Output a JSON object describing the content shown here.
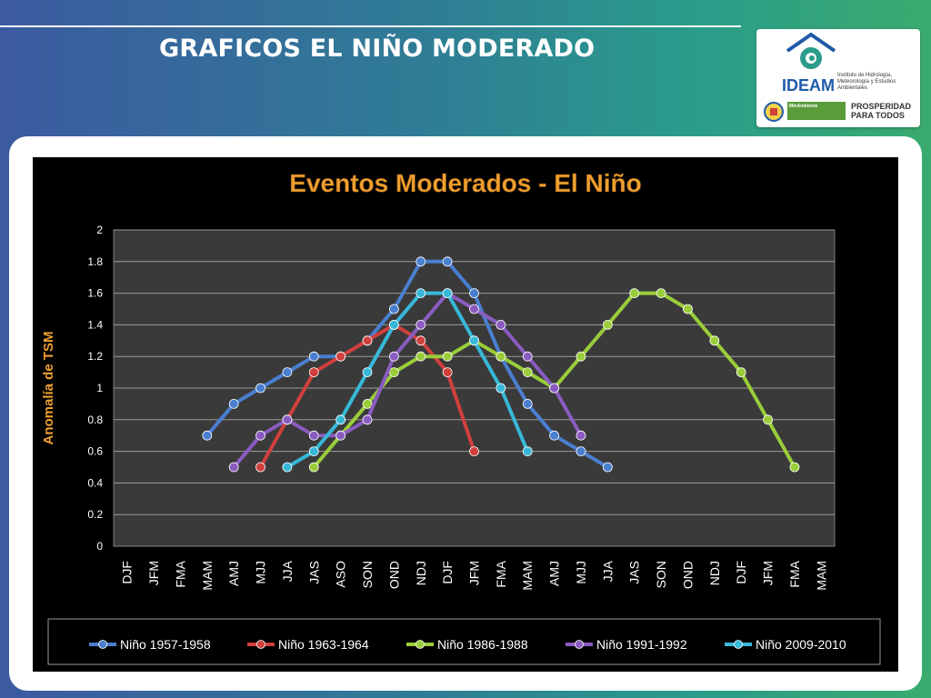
{
  "slide": {
    "title": "GRAFICOS EL NIÑO MODERADO"
  },
  "logo": {
    "name": "IDEAM",
    "description": "Instituto de Hidrología, Meteorología y Estudios Ambientales",
    "ministry": "MinAmbiente",
    "slogan_line1": "PROSPERIDAD",
    "slogan_line2": "PARA TODOS"
  },
  "colors": {
    "background_left": "#3c5aa0",
    "background_right": "#3aab6e",
    "chart_title": "#f0a030",
    "plot_area": "#3a3a3a"
  },
  "chart_data": {
    "type": "line",
    "title": "Eventos Moderados -  El Niño",
    "xlabel": "",
    "ylabel": "Anomalía de TSM",
    "ylim": [
      0,
      2
    ],
    "yticks": [
      0,
      0.2,
      0.4,
      0.6,
      0.8,
      1,
      1.2,
      1.4,
      1.6,
      1.8,
      2
    ],
    "ytick_labels": [
      "0",
      "0.2",
      "0.4",
      "0.6",
      "0.8",
      "1",
      "1.2",
      "1.4",
      "1.6",
      "1.8",
      "2"
    ],
    "grid": true,
    "legend": "bottom",
    "categories": [
      "DJF",
      "JFM",
      "FMA",
      "MAM",
      "AMJ",
      "MJJ",
      "JJA",
      "JAS",
      "ASO",
      "SON",
      "OND",
      "NDJ",
      "DJF",
      "JFM",
      "FMA",
      "MAM",
      "AMJ",
      "MJJ",
      "JJA",
      "JAS",
      "SON",
      "OND",
      "NDJ",
      "DJF",
      "JFM",
      "FMA",
      "MAM"
    ],
    "series": [
      {
        "name": "Niño 1957-1958",
        "color": "#4a7fd0",
        "values": [
          null,
          null,
          null,
          0.7,
          0.9,
          1.0,
          1.1,
          1.2,
          1.2,
          1.3,
          1.5,
          1.8,
          1.8,
          1.6,
          1.2,
          0.9,
          0.7,
          0.6,
          0.5,
          null,
          null,
          null,
          null,
          null,
          null,
          null,
          null
        ]
      },
      {
        "name": "Niño 1963-1964",
        "color": "#d0403c",
        "values": [
          null,
          null,
          null,
          null,
          null,
          0.5,
          0.8,
          1.1,
          1.2,
          1.3,
          1.4,
          1.3,
          1.1,
          0.6,
          null,
          null,
          null,
          null,
          null,
          null,
          null,
          null,
          null,
          null,
          null,
          null,
          null
        ]
      },
      {
        "name": "Niño 1986-1988",
        "color": "#9acd3a",
        "values": [
          null,
          null,
          null,
          null,
          null,
          null,
          null,
          0.5,
          0.7,
          0.9,
          1.1,
          1.2,
          1.2,
          1.3,
          1.2,
          1.1,
          1.0,
          1.2,
          1.4,
          1.6,
          1.6,
          1.5,
          1.3,
          1.1,
          0.8,
          0.5,
          null
        ]
      },
      {
        "name": "Niño 1991-1992",
        "color": "#8a5cc0",
        "values": [
          null,
          null,
          null,
          null,
          0.5,
          0.7,
          0.8,
          0.7,
          0.7,
          0.8,
          1.2,
          1.4,
          1.6,
          1.5,
          1.4,
          1.2,
          1.0,
          0.7,
          null,
          null,
          null,
          null,
          null,
          null,
          null,
          null,
          null
        ]
      },
      {
        "name": "Niño 2009-2010",
        "color": "#38b8d8",
        "values": [
          null,
          null,
          null,
          null,
          null,
          null,
          0.5,
          0.6,
          0.8,
          1.1,
          1.4,
          1.6,
          1.6,
          1.3,
          1.0,
          0.6,
          null,
          null,
          null,
          null,
          null,
          null,
          null,
          null,
          null,
          null,
          null
        ]
      }
    ]
  }
}
